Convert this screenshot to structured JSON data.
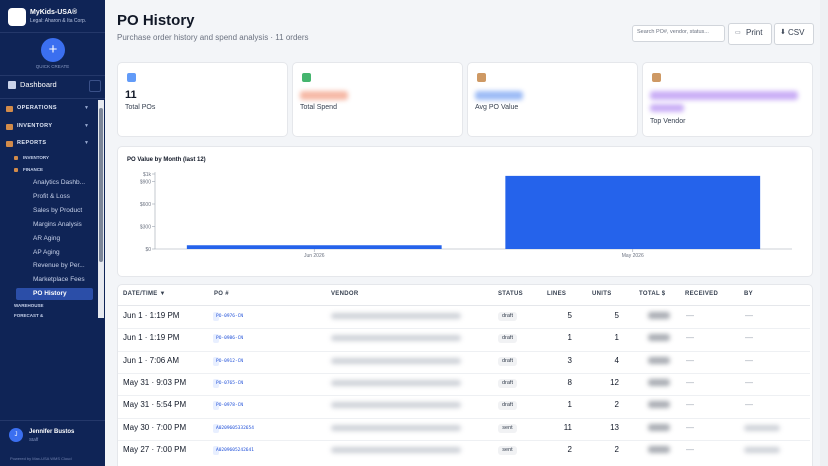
{
  "sidebar": {
    "brand": "MyKids-USA®",
    "legal": "Legal: Aharon & Ita Corp.",
    "quick_create": "QUICK CREATE",
    "dashboard": "Dashboard",
    "sections": [
      "OPERATIONS",
      "INVENTORY",
      "REPORTS"
    ],
    "subsections": [
      "INVENTORY",
      "FINANCE"
    ],
    "items": [
      "Analytics Dashb...",
      "Profit & Loss",
      "Sales by Product",
      "Margins Analysis",
      "AR Aging",
      "AP Aging",
      "Revenue by Per...",
      "Marketplace Fees",
      "PO History"
    ],
    "more": [
      "WAREHOUSE",
      "FORECAST &"
    ],
    "user": {
      "initial": "J",
      "name": "Jennifer Bustos",
      "role": "Staff"
    },
    "footer": "Powered by Max-USA WMS Cloud"
  },
  "header": {
    "title": "PO History",
    "subtitle": "Purchase order history and spend analysis · 11 orders",
    "search": "Search PO#, vendor, status...",
    "print": "Print",
    "csv": "CSV"
  },
  "stats": [
    {
      "value": "11",
      "label": "Total POs"
    },
    {
      "label": "Total Spend"
    },
    {
      "label": "Avg PO Value"
    },
    {
      "label": "Top Vendor"
    }
  ],
  "chart": {
    "type": "bar",
    "title": "PO Value by Month (last 12)",
    "categories": [
      "Jun 2026",
      "May 2026"
    ],
    "values": [
      50,
      975
    ],
    "color": "#2563eb",
    "ylim": [
      0,
      1000
    ],
    "yticks": [
      {
        "value": 0,
        "label": "$0"
      },
      {
        "value": 300,
        "label": "$300"
      },
      {
        "value": 600,
        "label": "$600"
      },
      {
        "value": 900,
        "label": "$900"
      },
      {
        "value": 1000,
        "label": "$1k"
      }
    ],
    "grid": false
  },
  "table": {
    "columns": [
      "DATE/TIME ▼",
      "PO #",
      "VENDOR",
      "STATUS",
      "LINES",
      "UNITS",
      "TOTAL $",
      "RECEIVED",
      "BY"
    ],
    "rows": [
      [
        "Jun 1 · 1:19 PM",
        "PO-0976-CN",
        "draft",
        "5",
        "5",
        "—",
        "—"
      ],
      [
        "Jun 1 · 1:19 PM",
        "PO-0986-CN",
        "draft",
        "1",
        "1",
        "—",
        "—"
      ],
      [
        "Jun 1 · 7:06 AM",
        "PO-0912-CN",
        "draft",
        "3",
        "4",
        "—",
        "—"
      ],
      [
        "May 31 · 9:03 PM",
        "PO-0765-CN",
        "draft",
        "8",
        "12",
        "—",
        "—"
      ],
      [
        "May 31 · 5:54 PM",
        "PO-0978-CN",
        "draft",
        "1",
        "2",
        "—",
        "—"
      ],
      [
        "May 30 · 7:00 PM",
        "A0209605332654",
        "sent",
        "11",
        "13",
        "—"
      ],
      [
        "May 27 · 7:00 PM",
        "A0209605242641",
        "sent",
        "2",
        "2",
        "—"
      ]
    ]
  }
}
